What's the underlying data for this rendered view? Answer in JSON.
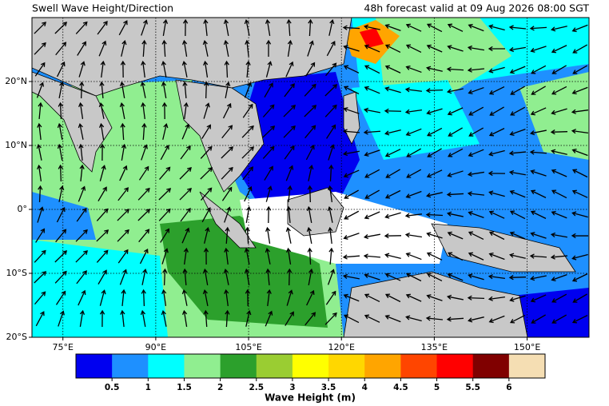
{
  "title": "Swell Wave Height/Direction",
  "subtitle": "48h forecast valid at 09 Aug 2026 08:00 SGT",
  "map": {
    "xlim": [
      70,
      160
    ],
    "ylim": [
      -20,
      30
    ],
    "xticks": [
      {
        "value": 75,
        "label": "75°E"
      },
      {
        "value": 90,
        "label": "90°E"
      },
      {
        "value": 105,
        "label": "105°E"
      },
      {
        "value": 120,
        "label": "120°E"
      },
      {
        "value": 135,
        "label": "135°E"
      },
      {
        "value": 150,
        "label": "150°E"
      }
    ],
    "yticks": [
      {
        "value": 20,
        "label": "20°N"
      },
      {
        "value": 10,
        "label": "10°N"
      },
      {
        "value": 0,
        "label": "0°"
      },
      {
        "value": -10,
        "label": "10°S"
      },
      {
        "value": -20,
        "label": "20°S"
      }
    ]
  },
  "colorbar": {
    "label": "Wave Height (m)",
    "colors": [
      "#0000f0",
      "#1e90ff",
      "#00ffff",
      "#90ee90",
      "#2ca02c",
      "#9acd32",
      "#ffff00",
      "#ffd700",
      "#ffa500",
      "#ff4500",
      "#ff0000",
      "#800000",
      "#f5deb3"
    ],
    "ticks": [
      0.5,
      1,
      1.5,
      2,
      2.5,
      3,
      3.5,
      4,
      4.5,
      5,
      5.5,
      6
    ]
  }
}
